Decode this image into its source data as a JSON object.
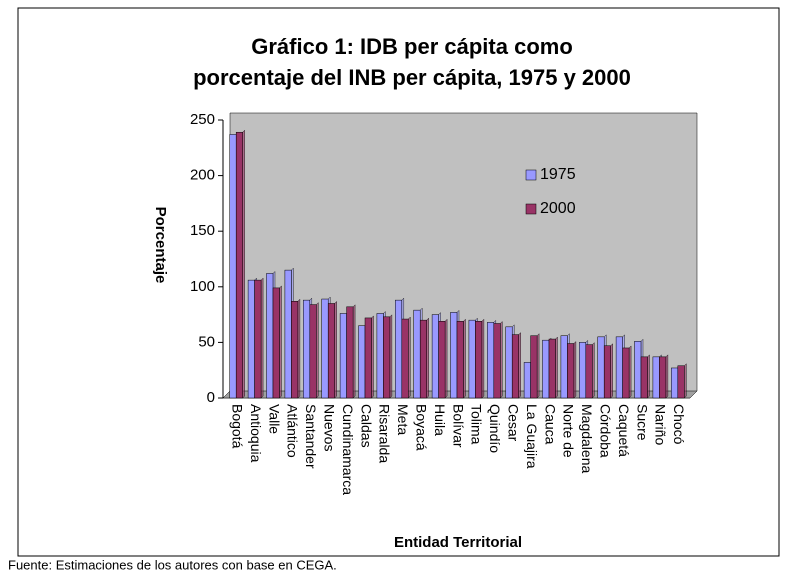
{
  "chart_data": {
    "type": "bar",
    "title": "Gráfico 1: IDB per cápita como porcentaje del INB per cápita, 1975 y 2000",
    "categories": [
      "Bogotá",
      "Antioquia",
      "Valle",
      "Atlántico",
      "Santander",
      "Nuevos",
      "Cundinamarca",
      "Caldas",
      "Risaralda",
      "Meta",
      "Boyacá",
      "Huila",
      "Bolívar",
      "Tolima",
      "Quindío",
      "Cesar",
      "La Guajira",
      "Cauca",
      "Norte de",
      "Magdalena",
      "Córdoba",
      "Caquetá",
      "Sucre",
      "Nariño",
      "Chocó"
    ],
    "series": [
      {
        "name": "1975",
        "color": "#9999ff",
        "values": [
          237,
          106,
          112,
          115,
          88,
          89,
          76,
          65,
          76,
          88,
          79,
          75,
          77,
          70,
          68,
          64,
          32,
          52,
          56,
          50,
          55,
          55,
          51,
          37,
          27
        ]
      },
      {
        "name": "2000",
        "color": "#993366",
        "values": [
          239,
          106,
          99,
          87,
          84,
          85,
          82,
          72,
          73,
          71,
          70,
          69,
          69,
          69,
          67,
          57,
          56,
          53,
          49,
          48,
          47,
          45,
          37,
          37,
          29
        ]
      }
    ],
    "ylim": [
      0,
      250
    ],
    "yticks": [
      0,
      50,
      100,
      150,
      200,
      250
    ],
    "y_label": "Porcentaje",
    "x_label": "Entidad Territorial",
    "source": "Fuente: Estimaciones de los autores con base en CEGA."
  }
}
